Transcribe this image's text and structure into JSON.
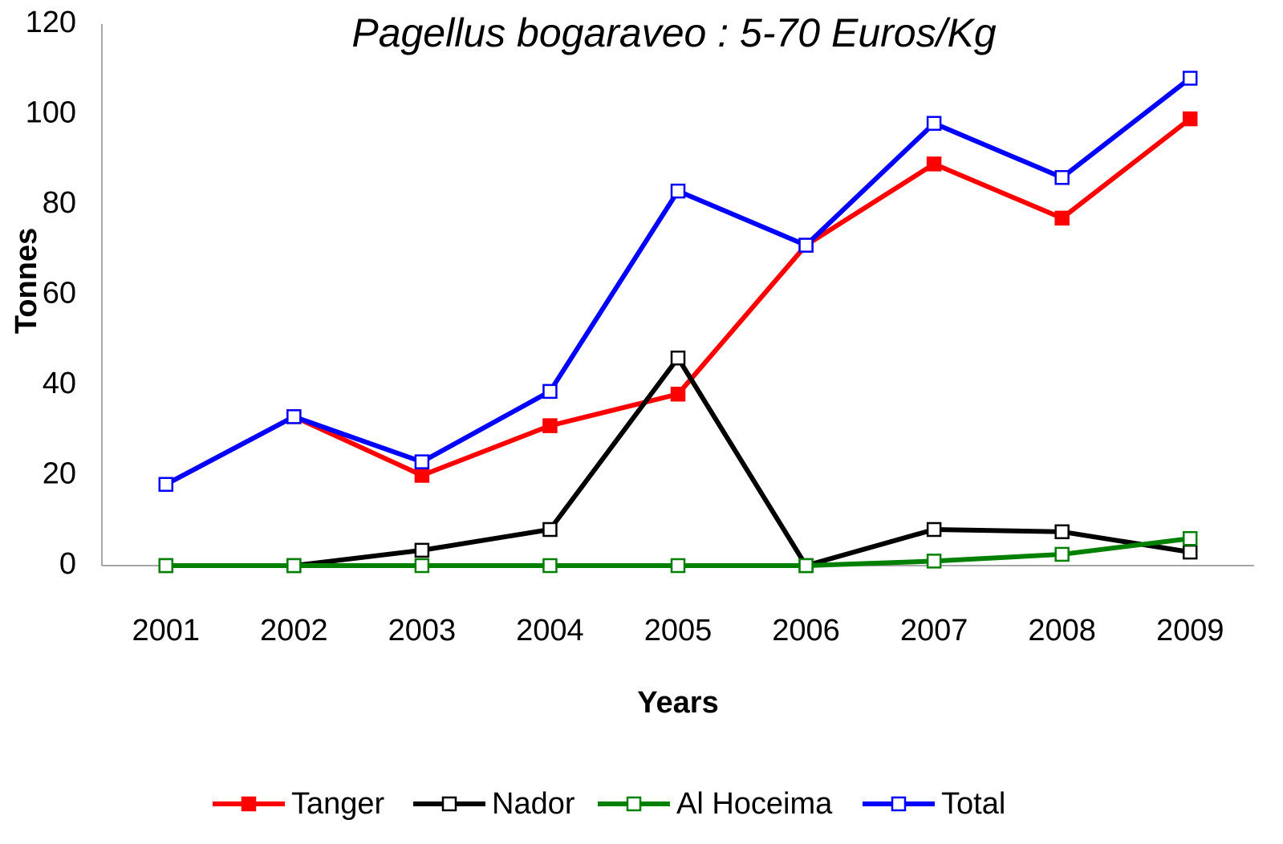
{
  "chart_data": {
    "type": "line",
    "title": "Pagellus bogaraveo : 5-70 Euros/Kg",
    "x_label": "Years",
    "y_label": "Tonnes",
    "categories": [
      "2001",
      "2002",
      "2003",
      "2004",
      "2005",
      "2006",
      "2007",
      "2008",
      "2009"
    ],
    "series": [
      {
        "name": "Tanger",
        "color": "#ff0000",
        "marker": "square-filled",
        "values": [
          18,
          33,
          20,
          31,
          38,
          71,
          89,
          77,
          99
        ]
      },
      {
        "name": "Nador",
        "color": "#000000",
        "marker": "square-open",
        "values": [
          0,
          0,
          3.4,
          8,
          46,
          0,
          8,
          7.5,
          3
        ]
      },
      {
        "name": "Al Hoceima",
        "color": "#008000",
        "marker": "square-open",
        "values": [
          0,
          0,
          0,
          0,
          0,
          0,
          1,
          2.5,
          6
        ]
      },
      {
        "name": "Total",
        "color": "#0000ff",
        "marker": "square-open",
        "values": [
          18,
          33,
          23,
          38.6,
          83,
          71,
          98,
          86,
          108
        ]
      }
    ],
    "ylim": [
      0,
      120
    ],
    "yticks": [
      0,
      20,
      40,
      60,
      80,
      100,
      120
    ],
    "grid": false,
    "legend": "bottom"
  }
}
